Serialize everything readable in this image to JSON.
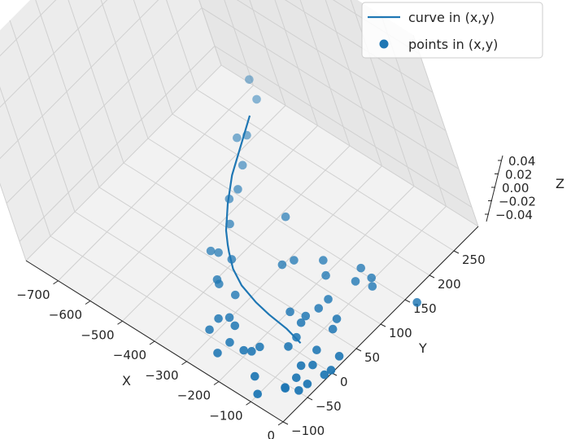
{
  "chart_data": {
    "type": "scatter",
    "projection": "3d",
    "xlabel": "X",
    "ylabel": "Y",
    "zlabel": "Z",
    "xlim": [
      -800,
      0
    ],
    "ylim": [
      -100,
      300
    ],
    "zlim": [
      -0.05,
      0.05
    ],
    "x_ticks": [
      "−700",
      "−600",
      "−500",
      "−400",
      "−300",
      "−200",
      "−100",
      "0"
    ],
    "y_ticks": [
      "−100",
      "−50",
      "0",
      "50",
      "100",
      "150",
      "200",
      "250"
    ],
    "z_ticks": [
      "0.04",
      "0.02",
      "0.00",
      "−0.02",
      "−0.04"
    ],
    "grid": true,
    "legend_position": "top-right",
    "colors": {
      "series": "#1f77b4",
      "pane": "#f2f2f2",
      "grid": "#d0d0d0"
    },
    "series": [
      {
        "name": "curve in (x,y)",
        "kind": "line",
        "x": [
          -649,
          -569,
          -523,
          -475,
          -444,
          -428,
          -388,
          -340,
          -280,
          -232,
          -171,
          -117
        ],
        "y": [
          259,
          170,
          131,
          96,
          79,
          71,
          53,
          39,
          29,
          24,
          20,
          13
        ]
      },
      {
        "name": "points in (x,y)",
        "kind": "scatter",
        "x": [
          -667,
          -719,
          -617,
          -631,
          -568,
          -531,
          -529,
          -480,
          -447,
          -465,
          -409,
          -386,
          -398,
          -334,
          -387,
          -317,
          -302,
          -321,
          -276,
          -257,
          -254,
          -195,
          -188,
          -141,
          -102,
          -60,
          -73,
          -134,
          -73,
          -52,
          -59,
          -62,
          -30,
          -26,
          -11,
          -7,
          -130,
          -148,
          -149,
          -159,
          -136,
          -212,
          -302,
          -288,
          -232,
          -198,
          -197,
          -155,
          -82,
          -18,
          -94,
          28,
          -106,
          -145,
          -88
        ],
        "y": [
          285,
          304,
          232,
          221,
          191,
          157,
          138,
          107,
          62,
          58,
          64,
          23,
          27,
          22,
          160,
          -42,
          -11,
          -21,
          -17,
          -65,
          -42,
          -36,
          -24,
          -65,
          -85,
          -56,
          -15,
          -1,
          17,
          -5,
          -34,
          -55,
          -48,
          -33,
          -8,
          3,
          134,
          90,
          71,
          51,
          17,
          -41,
          97,
          112,
          135,
          118,
          44,
          39,
          56,
          27,
          72,
          156,
          151,
          155,
          141
        ]
      }
    ]
  }
}
